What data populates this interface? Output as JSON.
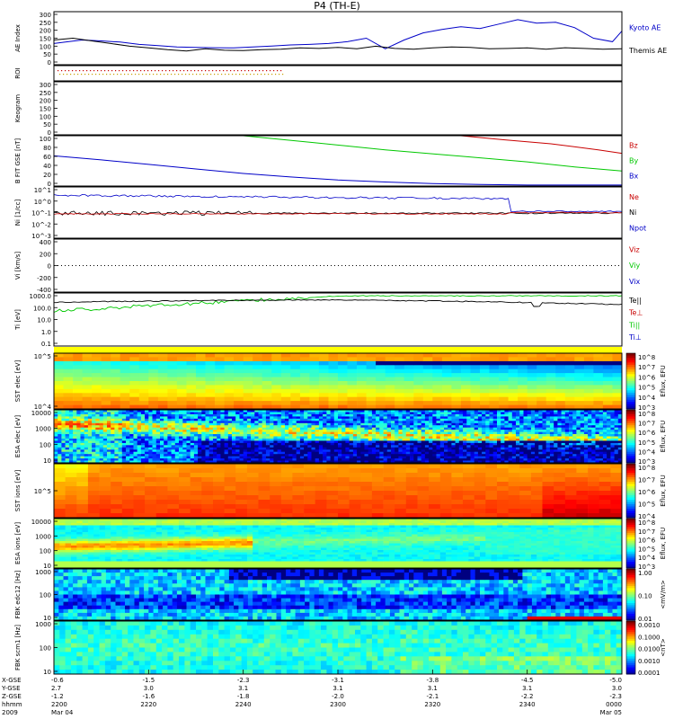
{
  "page_title": "P4 (TH-E)",
  "chart_data": {
    "type": "multi-panel",
    "x_axis_rows": [
      {
        "label": "X-GSE",
        "values": [
          "-0.6",
          "-1.5",
          "-2.3",
          "-3.1",
          "-3.8",
          "-4.5",
          "-5.0"
        ]
      },
      {
        "label": "Y-GSE",
        "values": [
          "2.7",
          "3.0",
          "3.1",
          "3.1",
          "3.1",
          "3.1",
          "3.0"
        ]
      },
      {
        "label": "Z-GSE",
        "values": [
          "-1.2",
          "-1.6",
          "-1.8",
          "-2.0",
          "-2.1",
          "-2.2",
          "-2.3"
        ]
      },
      {
        "label": "hhmm",
        "values": [
          "2200",
          "2220",
          "2240",
          "2300",
          "2320",
          "2340",
          "0000"
        ]
      },
      {
        "label": "2009",
        "values": [
          "Mar 04",
          "",
          "",
          "",
          "",
          "",
          "Mar 05"
        ]
      }
    ],
    "panels": [
      {
        "id": "ae",
        "ylabel": "AE Index",
        "ytick_labels": [
          "300",
          "250",
          "200",
          "150",
          "100",
          "50",
          "0"
        ],
        "ylim": [
          0,
          300
        ],
        "legend": [
          "Kyoto AE",
          "Themis AE"
        ],
        "legend_colors": [
          "#0000c8",
          "#000000"
        ],
        "series": [
          {
            "color": "#0000c8",
            "x": [
              0,
              3,
              6,
              10,
              14,
              18,
              22,
              26,
              30,
              34,
              38,
              42,
              46,
              50,
              54,
              58,
              62,
              66,
              70,
              74,
              78,
              82,
              86,
              90,
              94,
              98,
              102,
              106,
              110,
              114,
              118,
              120
            ],
            "y": [
              120,
              130,
              140,
              135,
              128,
              115,
              108,
              100,
              98,
              96,
              95,
              100,
              106,
              112,
              115,
              120,
              130,
              150,
              90,
              140,
              180,
              200,
              215,
              205,
              230,
              255,
              235,
              240,
              210,
              150,
              130,
              190
            ]
          },
          {
            "color": "#000000",
            "x": [
              0,
              4,
              8,
              12,
              16,
              20,
              24,
              28,
              32,
              36,
              40,
              44,
              48,
              52,
              56,
              60,
              64,
              68,
              72,
              76,
              80,
              84,
              88,
              92,
              96,
              100,
              104,
              108,
              112,
              116,
              120
            ],
            "y": [
              140,
              150,
              135,
              120,
              105,
              95,
              85,
              78,
              90,
              82,
              80,
              85,
              88,
              95,
              92,
              98,
              90,
              105,
              92,
              88,
              95,
              100,
              98,
              90,
              92,
              95,
              88,
              96,
              92,
              88,
              90
            ]
          }
        ]
      },
      {
        "id": "roi",
        "ylabel": "ROI",
        "ytick_labels": []
      },
      {
        "id": "keogram",
        "ylabel": "Keogram",
        "ytick_labels": [
          "300",
          "250",
          "200",
          "150",
          "100",
          "50",
          "0"
        ]
      },
      {
        "id": "bfield",
        "ylabel": "B FIT GSE [nT]",
        "ytick_labels": [
          "100",
          "80",
          "60",
          "40",
          "20",
          "0"
        ],
        "ylim": [
          0,
          100
        ],
        "legend": [
          "Bz",
          "By",
          "Bx"
        ],
        "legend_colors": [
          "#c80000",
          "#00c800",
          "#0000c8"
        ],
        "series": [
          {
            "color": "#c80000",
            "x": [
              86,
              95,
              105,
              115,
              120
            ],
            "y": [
              100,
              92,
              84,
              72,
              65
            ]
          },
          {
            "color": "#00c800",
            "x": [
              40,
              55,
              70,
              85,
              100,
              110,
              120
            ],
            "y": [
              100,
              86,
              72,
              60,
              48,
              38,
              30
            ]
          },
          {
            "color": "#0000c8",
            "x": [
              0,
              10,
              20,
              30,
              40,
              50,
              60,
              70,
              80,
              90,
              100,
              110,
              120
            ],
            "y": [
              60,
              52,
              43,
              34,
              25,
              18,
              12,
              8,
              5,
              3,
              2,
              2,
              2
            ]
          }
        ]
      },
      {
        "id": "density",
        "ylabel": "Ni [1/cc]",
        "ytick_labels": [
          "10^1",
          "10^0",
          "10^-1",
          "10^-2",
          "10^-3"
        ],
        "legend": [
          "Ne",
          "Ni",
          "Npot"
        ],
        "legend_colors": [
          "#c80000",
          "#000000",
          "#0000c8"
        ]
      },
      {
        "id": "velocity",
        "ylabel": "Vi [km/s]",
        "ytick_labels": [
          "400",
          "200",
          "0",
          "-200",
          "-400"
        ],
        "ylim": [
          -500,
          500
        ],
        "legend": [
          "Viz",
          "Viy",
          "Vix"
        ],
        "legend_colors": [
          "#c80000",
          "#00c800",
          "#0000c8"
        ]
      },
      {
        "id": "temperature",
        "ylabel": "Ti [eV]",
        "ytick_labels": [
          "1000.0",
          "100.0",
          "10.0",
          "1.0",
          "0.1"
        ],
        "legend": [
          "Te||",
          "Te⊥",
          "Ti||",
          "Ti⊥"
        ],
        "legend_colors": [
          "#000000",
          "#c80000",
          "#00c800",
          "#0000c8"
        ]
      },
      {
        "id": "sst_e",
        "ylabel": "SST elec [eV]",
        "ytick_labels": [
          "10^5",
          "10^4"
        ]
      },
      {
        "id": "esa_e",
        "ylabel": "ESA elec [eV]",
        "ytick_labels": [
          "10000",
          "1000",
          "100",
          "10"
        ]
      },
      {
        "id": "sst_i",
        "ylabel": "SST ions [eV]",
        "ytick_labels": [
          "10^5"
        ]
      },
      {
        "id": "esa_i",
        "ylabel": "ESA ions [eV]",
        "ytick_labels": [
          "10000",
          "1000",
          "100",
          "10"
        ]
      },
      {
        "id": "fbk_e",
        "ylabel": "FBK edc12 [Hz]",
        "ytick_labels": [
          "1000",
          "100",
          "10"
        ]
      },
      {
        "id": "fbk_b",
        "ylabel": "FBK scm1 [Hz]",
        "ytick_labels": [
          "1000",
          "100",
          "10"
        ]
      }
    ],
    "colorbars": [
      {
        "label": "Eflux, EFU",
        "ticks": [
          "10^8",
          "10^7",
          "10^6",
          "10^5",
          "10^4",
          "10^3"
        ]
      },
      {
        "label": "Eflux, EFU",
        "ticks": [
          "10^8",
          "10^7",
          "10^6",
          "10^5",
          "10^4",
          "10^3"
        ]
      },
      {
        "label": "Eflux, EFU",
        "ticks": [
          "10^8",
          "10^7",
          "10^6",
          "10^5",
          "10^4"
        ]
      },
      {
        "label": "Eflux, EFU",
        "ticks": [
          "10^8",
          "10^7",
          "10^6",
          "10^5",
          "10^4",
          "10^3"
        ]
      },
      {
        "label": "<mV/m>",
        "ticks": [
          "1.00",
          "0.10",
          "0.01"
        ]
      },
      {
        "label": "<nT>",
        "ticks": [
          "0.0010",
          "0.1000",
          "0.0100",
          "0.0010",
          "0.0001"
        ]
      }
    ]
  }
}
